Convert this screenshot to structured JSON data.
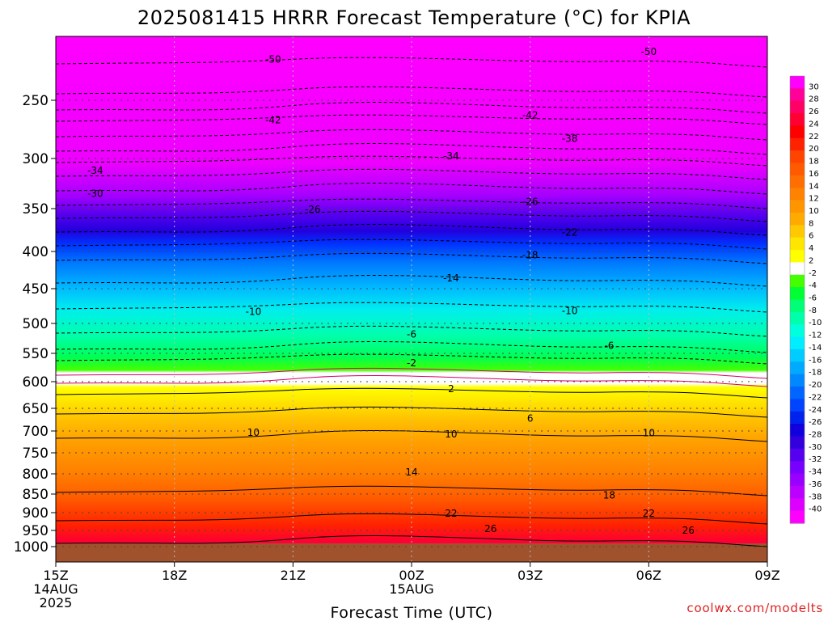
{
  "chart_data": {
    "type": "heatmap",
    "title": "2025081415 HRRR Forecast Temperature (°C) for KPIA",
    "xlabel": "Forecast Time (UTC)",
    "credit": "coolwx.com/modelts",
    "x_ticks": [
      {
        "hour": 0,
        "lines": [
          "15Z",
          "14AUG",
          "2025"
        ]
      },
      {
        "hour": 3,
        "lines": [
          "18Z"
        ]
      },
      {
        "hour": 6,
        "lines": [
          "21Z"
        ]
      },
      {
        "hour": 9,
        "lines": [
          "00Z",
          "15AUG"
        ]
      },
      {
        "hour": 12,
        "lines": [
          "03Z"
        ]
      },
      {
        "hour": 15,
        "lines": [
          "06Z"
        ]
      },
      {
        "hour": 18,
        "lines": [
          "09Z"
        ]
      }
    ],
    "y_ticks": [
      "250",
      "300",
      "350",
      "400",
      "450",
      "500",
      "550",
      "600",
      "650",
      "700",
      "750",
      "800",
      "850",
      "900",
      "950",
      "1000"
    ],
    "y_axis": {
      "levels_hPa": [
        1000,
        950,
        900,
        850,
        800,
        750,
        700,
        650,
        600,
        550,
        500,
        450,
        400,
        350,
        300,
        250,
        200
      ]
    },
    "x_range_hours": [
      0,
      18
    ],
    "ground_level_hPa": 990,
    "colorbar": {
      "labels": [
        "30",
        "28",
        "26",
        "24",
        "22",
        "20",
        "18",
        "16",
        "14",
        "12",
        "10",
        "8",
        "6",
        "4",
        "2",
        "-2",
        "-4",
        "-6",
        "-8",
        "-10",
        "-12",
        "-14",
        "-16",
        "-18",
        "-20",
        "-22",
        "-24",
        "-26",
        "-28",
        "-30",
        "-32",
        "-34",
        "-36",
        "-38",
        "-40"
      ],
      "colors": [
        "#ff00ff",
        "#ff0099",
        "#ff0066",
        "#ff0033",
        "#ff0000",
        "#ff2200",
        "#ff4400",
        "#ff5a00",
        "#ff6e00",
        "#ff8200",
        "#ff9600",
        "#ffaa00",
        "#ffc800",
        "#ffe600",
        "#ffff00",
        "#ffffff",
        "#44ff00",
        "#00ff33",
        "#00ff77",
        "#00ffaa",
        "#00ffdd",
        "#00eeff",
        "#00ccff",
        "#00aaff",
        "#0088ff",
        "#0066ff",
        "#0044ff",
        "#0022ee",
        "#1100dd",
        "#3300dd",
        "#5500ee",
        "#7700ff",
        "#9900ff",
        "#bb00ff",
        "#dd00ff",
        "#ff00ff"
      ]
    },
    "isotherm_labels": [
      {
        "text": "-50",
        "hour": 5.5,
        "hPa": 218
      },
      {
        "text": "-50",
        "hour": 15.0,
        "hPa": 212
      },
      {
        "text": "-42",
        "hour": 5.5,
        "hPa": 267
      },
      {
        "text": "-42",
        "hour": 12.0,
        "hPa": 263
      },
      {
        "text": "-38",
        "hour": 13.0,
        "hPa": 283
      },
      {
        "text": "-34",
        "hour": 1.0,
        "hPa": 312
      },
      {
        "text": "-34",
        "hour": 10.0,
        "hPa": 298
      },
      {
        "text": "-30",
        "hour": 1.0,
        "hPa": 335
      },
      {
        "text": "-26",
        "hour": 6.5,
        "hPa": 351
      },
      {
        "text": "-26",
        "hour": 12.0,
        "hPa": 343
      },
      {
        "text": "-22",
        "hour": 13.0,
        "hPa": 378
      },
      {
        "text": "-18",
        "hour": 12.0,
        "hPa": 405
      },
      {
        "text": "-14",
        "hour": 10.0,
        "hPa": 436
      },
      {
        "text": "-10",
        "hour": 5.0,
        "hPa": 483
      },
      {
        "text": "-10",
        "hour": 13.0,
        "hPa": 482
      },
      {
        "text": "-6",
        "hour": 9.0,
        "hPa": 518
      },
      {
        "text": "-6",
        "hour": 14.0,
        "hPa": 537
      },
      {
        "text": "-2",
        "hour": 9.0,
        "hPa": 567
      },
      {
        "text": "2",
        "hour": 10.0,
        "hPa": 614
      },
      {
        "text": "6",
        "hour": 12.0,
        "hPa": 672
      },
      {
        "text": "10",
        "hour": 5.0,
        "hPa": 704
      },
      {
        "text": "10",
        "hour": 10.0,
        "hPa": 707
      },
      {
        "text": "10",
        "hour": 15.0,
        "hPa": 705
      },
      {
        "text": "14",
        "hour": 9.0,
        "hPa": 796
      },
      {
        "text": "18",
        "hour": 14.0,
        "hPa": 853
      },
      {
        "text": "22",
        "hour": 10.0,
        "hPa": 902
      },
      {
        "text": "22",
        "hour": 15.0,
        "hPa": 902
      },
      {
        "text": "26",
        "hour": 11.0,
        "hPa": 945
      },
      {
        "text": "26",
        "hour": 16.0,
        "hPa": 950
      }
    ]
  }
}
